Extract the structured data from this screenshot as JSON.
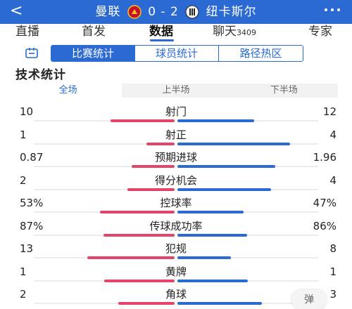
{
  "header": {
    "back": "<",
    "home_team": "曼联",
    "score": "0 - 2",
    "away_team": "纽卡斯尔",
    "more": "⋮⋮⋮",
    "colors": {
      "bar": "#2a6ad2"
    }
  },
  "nav": {
    "tabs": [
      {
        "label": "直播"
      },
      {
        "label": "首发"
      },
      {
        "label": "数据"
      },
      {
        "label": "聊天",
        "count": "3409"
      },
      {
        "label": "专家"
      }
    ],
    "active": "数据"
  },
  "segments": [
    "比赛统计",
    "球员统计",
    "路径热区"
  ],
  "section_title": "技术统计",
  "periods": [
    "全场",
    "上半场",
    "下半场"
  ],
  "stats": [
    {
      "label": "射门",
      "left": "10",
      "right": "12",
      "lf": 10,
      "rf": 12
    },
    {
      "label": "射正",
      "left": "1",
      "right": "4",
      "lf": 1,
      "rf": 4
    },
    {
      "label": "预期进球",
      "left": "0.87",
      "right": "1.96",
      "lf": 0.87,
      "rf": 1.96
    },
    {
      "label": "得分机会",
      "left": "2",
      "right": "4",
      "lf": 2,
      "rf": 4
    },
    {
      "label": "控球率",
      "left": "53%",
      "right": "47%",
      "lf": 53,
      "rf": 47
    },
    {
      "label": "传球成功率",
      "left": "87%",
      "right": "86%",
      "lf": 87,
      "rf": 86
    },
    {
      "label": "犯规",
      "left": "13",
      "right": "8",
      "lf": 13,
      "rf": 8
    },
    {
      "label": "黄牌",
      "left": "1",
      "right": "1",
      "lf": 1,
      "rf": 1
    },
    {
      "label": "角球",
      "left": "2",
      "right": "3",
      "lf": 2,
      "rf": 3
    }
  ],
  "danmu_label": "弹",
  "colors": {
    "home": "#e2456a",
    "away": "#2a6ad2"
  }
}
